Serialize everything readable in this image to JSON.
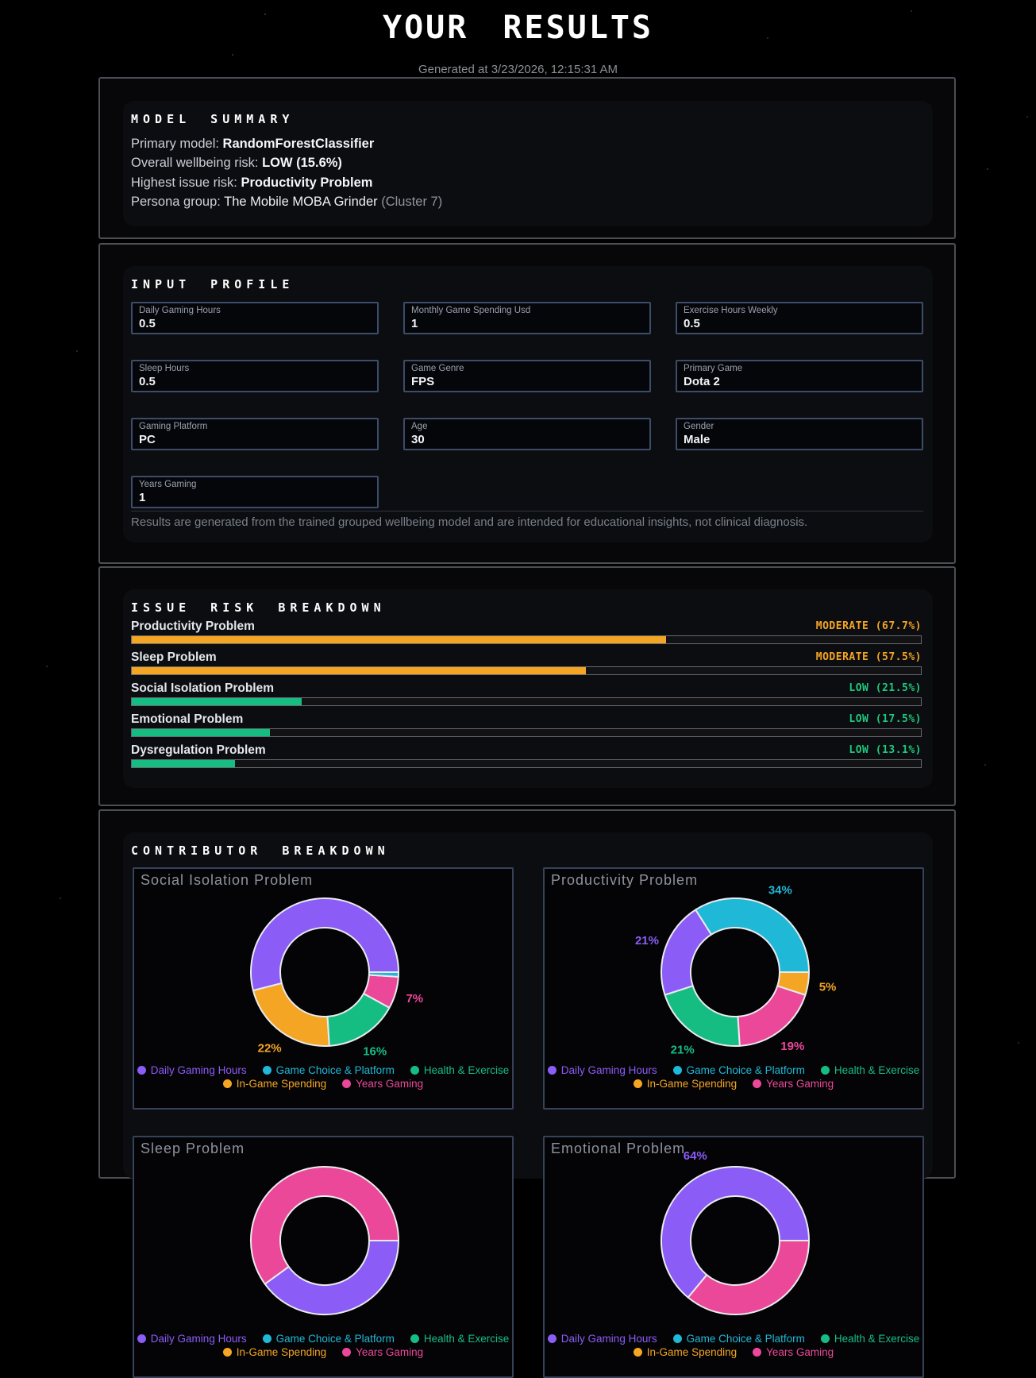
{
  "title": "YOUR RESULTS",
  "generated_at": "Generated at 3/23/2026, 12:15:31 AM",
  "colors": {
    "accent_green": "#19c07d",
    "risk_moderate": "#f5a524",
    "risk_low": "#1dc97e",
    "bar_low": "#16bd83",
    "pie_stroke": "#e9ebee",
    "series": {
      "Daily Gaming Hours": "#8b5cf6",
      "Game Choice & Platform": "#1fb8d6",
      "Health & Exercise": "#16bd83",
      "In-Game Spending": "#f5a524",
      "Years Gaming": "#ec4899"
    }
  },
  "model_summary": {
    "heading": "MODEL SUMMARY",
    "primary_model_label": "Primary model: ",
    "primary_model": "RandomForestClassifier",
    "overall_risk_label": "Overall wellbeing risk: ",
    "overall_risk": "LOW (15.6%)",
    "highest_issue_label": "Highest issue risk: ",
    "highest_issue": "Productivity Problem",
    "persona_label": "Persona group: ",
    "persona": "The Mobile MOBA Grinder ",
    "persona_cluster": "(Cluster 7)"
  },
  "input_profile": {
    "heading": "INPUT PROFILE",
    "fields": [
      {
        "label": "Daily Gaming Hours",
        "value": "0.5"
      },
      {
        "label": "Monthly Game Spending Usd",
        "value": "1"
      },
      {
        "label": "Exercise Hours Weekly",
        "value": "0.5"
      },
      {
        "label": "Sleep Hours",
        "value": "0.5"
      },
      {
        "label": "Game Genre",
        "value": "FPS"
      },
      {
        "label": "Primary Game",
        "value": "Dota 2"
      },
      {
        "label": "Gaming Platform",
        "value": "PC"
      },
      {
        "label": "Age",
        "value": "30"
      },
      {
        "label": "Gender",
        "value": "Male"
      },
      {
        "label": "Years Gaming",
        "value": "1"
      }
    ],
    "disclaimer": "Results are generated from the trained grouped wellbeing model and are intended for educational insights, not clinical diagnosis."
  },
  "issue_risk": {
    "heading": "ISSUE RISK BREAKDOWN",
    "rows": [
      {
        "label": "Productivity Problem",
        "badge": "MODERATE (67.7%)",
        "level": "moderate",
        "pct": 67.7
      },
      {
        "label": "Sleep Problem",
        "badge": "MODERATE (57.5%)",
        "level": "moderate",
        "pct": 57.5
      },
      {
        "label": "Social Isolation Problem",
        "badge": "LOW (21.5%)",
        "level": "low",
        "pct": 21.5
      },
      {
        "label": "Emotional Problem",
        "badge": "LOW (17.5%)",
        "level": "low",
        "pct": 17.5
      },
      {
        "label": "Dysregulation Problem",
        "badge": "LOW (13.1%)",
        "level": "low",
        "pct": 13.1
      }
    ]
  },
  "contributors": {
    "heading": "CONTRIBUTOR BREAKDOWN",
    "legend": [
      "Daily Gaming Hours",
      "Game Choice & Platform",
      "Health & Exercise",
      "In-Game Spending",
      "Years Gaming"
    ]
  },
  "chart_data": [
    {
      "type": "pie",
      "donut": true,
      "title": "Social Isolation Problem",
      "slices": [
        {
          "label": "Daily Gaming Hours",
          "pct": 54,
          "data_label": ""
        },
        {
          "label": "In-Game Spending",
          "pct": 22,
          "data_label": "22%"
        },
        {
          "label": "Health & Exercise",
          "pct": 16,
          "data_label": "16%"
        },
        {
          "label": "Years Gaming",
          "pct": 7,
          "data_label": "7%"
        },
        {
          "label": "Game Choice & Platform",
          "pct": 1,
          "data_label": ""
        }
      ]
    },
    {
      "type": "pie",
      "donut": true,
      "title": "Productivity Problem",
      "slices": [
        {
          "label": "Game Choice & Platform",
          "pct": 34,
          "data_label": "34%"
        },
        {
          "label": "Daily Gaming Hours",
          "pct": 21,
          "data_label": "21%"
        },
        {
          "label": "Health & Exercise",
          "pct": 21,
          "data_label": "21%"
        },
        {
          "label": "Years Gaming",
          "pct": 19,
          "data_label": "19%"
        },
        {
          "label": "In-Game Spending",
          "pct": 5,
          "data_label": "5%"
        }
      ]
    },
    {
      "type": "pie",
      "donut": true,
      "title": "Sleep Problem",
      "partially_visible": true,
      "slices": [
        {
          "label": "Years Gaming",
          "pct": 60,
          "data_label": "",
          "approx": true
        },
        {
          "label": "Daily Gaming Hours",
          "pct": 40,
          "data_label": "",
          "approx": true
        }
      ]
    },
    {
      "type": "pie",
      "donut": true,
      "title": "Emotional Problem",
      "partially_visible": true,
      "slices": [
        {
          "label": "Daily Gaming Hours",
          "pct": 64,
          "data_label": "64%"
        },
        {
          "label": "Years Gaming",
          "pct": 36,
          "data_label": "",
          "approx": true
        }
      ]
    }
  ]
}
